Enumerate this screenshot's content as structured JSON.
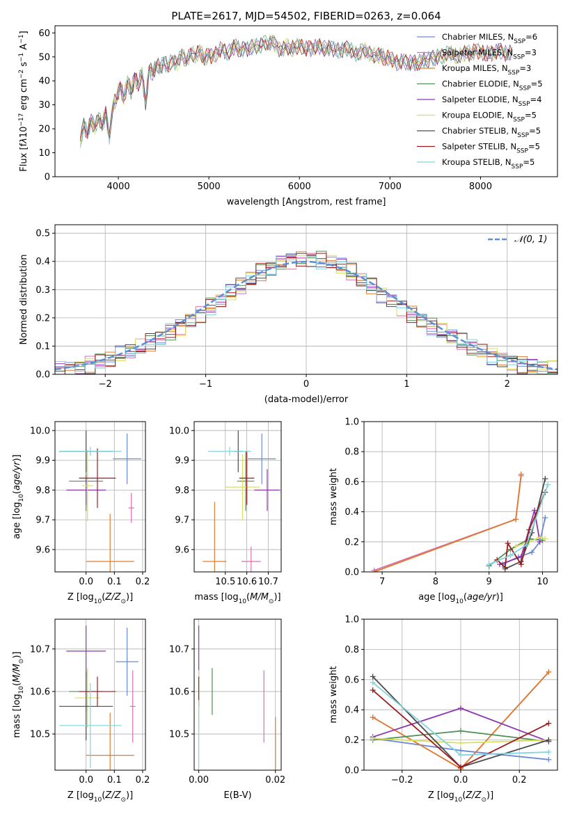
{
  "figure_title": "PLATE=2617, MJD=54502, FIBERID=0263, z=0.064",
  "colors": {
    "Chabrier MILES": "#6a8bd4",
    "Salpeter MILES": "#d86fb8",
    "Kroupa MILES": "#e07b2e",
    "Chabrier ELODIE": "#4f8f53",
    "Salpeter ELODIE": "#8e35b0",
    "Kroupa ELODIE": "#d8e05a",
    "Chabrier STELIB": "#4a4a4a",
    "Salpeter STELIB": "#9e1b1b",
    "Kroupa STELIB": "#7fd3de",
    "normal": "#5b8fd9"
  },
  "chart_data": [
    {
      "id": "spectrum",
      "type": "line",
      "title": "PLATE=2617, MJD=54502, FIBERID=0263, z=0.064",
      "xlabel": "wavelength [Angstrom, rest frame]",
      "ylabel": "Flux [f_λ 10^-17 erg cm^-2 s^-1 A^-1]",
      "xlim": [
        3300,
        8850
      ],
      "ylim": [
        0,
        63
      ],
      "xticks": [
        4000,
        5000,
        6000,
        7000,
        8000
      ],
      "yticks": [
        0,
        10,
        20,
        30,
        40,
        50,
        60
      ],
      "grid": false,
      "legend_position": "top-right",
      "legend": [
        "Chabrier MILES, N_SSP=6",
        "Salpeter MILES, N_SSP=3",
        "Kroupa MILES, N_SSP=3",
        "Chabrier ELODIE, N_SSP=5",
        "Salpeter ELODIE, N_SSP=4",
        "Kroupa ELODIE, N_SSP=5",
        "Chabrier STELIB, N_SSP=5",
        "Salpeter STELIB, N_SSP=5",
        "Kroupa STELIB, N_SSP=5"
      ],
      "x": [
        3580,
        3620,
        3660,
        3700,
        3740,
        3780,
        3820,
        3860,
        3900,
        3940,
        3980,
        4020,
        4060,
        4100,
        4140,
        4180,
        4220,
        4260,
        4300,
        4340,
        4380,
        4420,
        4460,
        4500,
        4550,
        4600,
        4650,
        4700,
        4750,
        4800,
        4850,
        4900,
        4950,
        5000,
        5050,
        5100,
        5150,
        5200,
        5250,
        5300,
        5350,
        5400,
        5450,
        5500,
        5550,
        5600,
        5650,
        5700,
        5750,
        5800,
        5850,
        5900,
        5950,
        6000,
        6050,
        6100,
        6150,
        6200,
        6250,
        6300,
        6350,
        6400,
        6450,
        6500,
        6550,
        6600,
        6650,
        6700,
        6750,
        6800,
        6850,
        6900,
        6950,
        7000,
        7050,
        7100,
        7150,
        7200,
        7250,
        7300,
        7350,
        7400,
        7450,
        7500,
        7550,
        7600,
        7650,
        7700,
        7750,
        7800,
        7850,
        7900,
        7950,
        8000,
        8050,
        8100,
        8150,
        8200,
        8250,
        8300,
        8350
      ],
      "y": [
        14,
        22,
        18,
        24,
        20,
        25,
        21,
        27,
        16,
        30,
        33,
        38,
        32,
        40,
        35,
        42,
        38,
        44,
        30,
        45,
        43,
        47,
        45,
        48,
        46,
        49,
        47,
        51,
        48,
        52,
        50,
        53,
        49,
        51,
        50,
        52,
        54,
        51,
        53,
        55,
        52,
        54,
        53,
        55,
        54,
        56,
        55,
        57,
        54,
        52,
        55,
        53,
        54,
        55,
        53,
        54,
        53,
        55,
        54,
        53,
        54,
        53,
        52,
        54,
        53,
        52,
        51,
        53,
        52,
        51,
        50,
        51,
        49,
        50,
        48,
        47,
        49,
        47,
        48,
        47,
        49,
        48,
        50,
        49,
        51,
        50,
        52,
        51,
        50,
        51,
        52,
        51,
        53,
        52,
        51,
        52,
        51,
        53,
        52,
        51,
        52
      ]
    },
    {
      "id": "residuals",
      "type": "line",
      "xlabel": "(data-model)/error",
      "ylabel": "Normed distribution",
      "xlim": [
        -2.5,
        2.5
      ],
      "ylim": [
        0,
        0.53
      ],
      "xticks": [
        -2,
        -1,
        0,
        1,
        2
      ],
      "yticks": [
        0.0,
        0.1,
        0.2,
        0.3,
        0.4,
        0.5
      ],
      "grid": true,
      "legend_position": "top-right",
      "legend": [
        "𝒩(0, 1)"
      ],
      "bin_edges": [
        -2.5,
        -2.4,
        -2.3,
        -2.2,
        -2.1,
        -2.0,
        -1.9,
        -1.8,
        -1.7,
        -1.6,
        -1.5,
        -1.4,
        -1.3,
        -1.2,
        -1.1,
        -1.0,
        -0.9,
        -0.8,
        -0.7,
        -0.6,
        -0.5,
        -0.4,
        -0.3,
        -0.2,
        -0.1,
        0.0,
        0.1,
        0.2,
        0.3,
        0.4,
        0.5,
        0.6,
        0.7,
        0.8,
        0.9,
        1.0,
        1.1,
        1.2,
        1.3,
        1.4,
        1.5,
        1.6,
        1.7,
        1.8,
        1.9,
        2.0,
        2.1,
        2.2,
        2.3,
        2.4,
        2.5
      ],
      "histogram_center": [
        0.015,
        0.02,
        0.028,
        0.036,
        0.045,
        0.055,
        0.067,
        0.08,
        0.095,
        0.112,
        0.13,
        0.15,
        0.17,
        0.192,
        0.215,
        0.24,
        0.262,
        0.285,
        0.31,
        0.335,
        0.36,
        0.38,
        0.395,
        0.405,
        0.41,
        0.41,
        0.405,
        0.395,
        0.38,
        0.36,
        0.335,
        0.31,
        0.285,
        0.262,
        0.24,
        0.215,
        0.192,
        0.17,
        0.15,
        0.13,
        0.112,
        0.095,
        0.08,
        0.067,
        0.055,
        0.045,
        0.036,
        0.028,
        0.02,
        0.015
      ],
      "normal_curve": {
        "mean": 0,
        "sigma": 1
      }
    },
    {
      "id": "age_vs_Z",
      "type": "scatter",
      "xlabel": "Z [log10(Z/Z⊙)]",
      "ylabel": "age [log10(age/yr)]",
      "xlim": [
        -0.11,
        0.21
      ],
      "ylim": [
        9.525,
        10.03
      ],
      "xticks": [
        0.0,
        0.1,
        0.2
      ],
      "yticks": [
        9.6,
        9.7,
        9.8,
        9.9,
        10.0
      ],
      "grid": true,
      "points": [
        {
          "model": "Chabrier MILES",
          "x": 0.145,
          "xerr": 0.05,
          "y": 9.905,
          "yerr": 0.085
        },
        {
          "model": "Salpeter MILES",
          "x": 0.16,
          "xerr": 0.01,
          "y": 9.74,
          "yerr": 0.05
        },
        {
          "model": "Kroupa MILES",
          "x": 0.085,
          "xerr": 0.085,
          "y": 9.56,
          "yerr": 0.16
        },
        {
          "model": "Chabrier ELODIE",
          "x": 0.0,
          "xerr": 0.06,
          "y": 9.83,
          "yerr": 0.1
        },
        {
          "model": "Salpeter ELODIE",
          "x": 0.0,
          "xerr": 0.07,
          "y": 9.8,
          "yerr": 0.05
        },
        {
          "model": "Kroupa ELODIE",
          "x": 0.005,
          "xerr": 0.02,
          "y": 9.815,
          "yerr": 0.12
        },
        {
          "model": "Chabrier STELIB",
          "x": 0.0,
          "xerr": 0.095,
          "y": 9.93,
          "yerr": 0.07
        },
        {
          "model": "Salpeter STELIB",
          "x": 0.04,
          "xerr": 0.065,
          "y": 9.84,
          "yerr": 0.1
        },
        {
          "model": "Kroupa STELIB",
          "x": 0.015,
          "xerr": 0.11,
          "y": 9.93,
          "yerr": 0.015
        }
      ]
    },
    {
      "id": "age_vs_mass",
      "type": "scatter",
      "xlabel": "mass [log10(M/M⊙)]",
      "ylabel": "",
      "xlim": [
        10.355,
        10.76
      ],
      "ylim": [
        9.525,
        10.03
      ],
      "xticks": [
        10.5,
        10.6,
        10.7
      ],
      "yticks": [
        9.6,
        9.7,
        9.8,
        9.9,
        10.0
      ],
      "grid": true,
      "points": [
        {
          "model": "Chabrier MILES",
          "x": 10.67,
          "xerr": 0.065,
          "y": 9.905,
          "yerr": 0.085
        },
        {
          "model": "Salpeter MILES",
          "x": 10.62,
          "xerr": 0.045,
          "y": 9.56,
          "yerr": 0.05
        },
        {
          "model": "Kroupa MILES",
          "x": 10.45,
          "xerr": 0.055,
          "y": 9.56,
          "yerr": 0.2
        },
        {
          "model": "Chabrier ELODIE",
          "x": 10.595,
          "xerr": 0.04,
          "y": 9.83,
          "yerr": 0.1
        },
        {
          "model": "Salpeter ELODIE",
          "x": 10.695,
          "xerr": 0.06,
          "y": 9.8,
          "yerr": 0.07
        },
        {
          "model": "Kroupa ELODIE",
          "x": 10.58,
          "xerr": 0.08,
          "y": 9.81,
          "yerr": 0.11
        },
        {
          "model": "Chabrier STELIB",
          "x": 10.56,
          "xerr": 0.02,
          "y": 9.93,
          "yerr": 0.07
        },
        {
          "model": "Salpeter STELIB",
          "x": 10.6,
          "xerr": 0.035,
          "y": 9.84,
          "yerr": 0.09
        },
        {
          "model": "Kroupa STELIB",
          "x": 10.52,
          "xerr": 0.1,
          "y": 9.93,
          "yerr": 0.015
        }
      ]
    },
    {
      "id": "massweight_vs_age",
      "type": "line",
      "xlabel": "age [log10(age/yr)]",
      "ylabel": "mass weight",
      "xlim": [
        6.66,
        10.28
      ],
      "ylim": [
        0,
        1.0
      ],
      "xticks": [
        7,
        8,
        9,
        10
      ],
      "yticks": [
        0.0,
        0.2,
        0.4,
        0.6,
        0.8,
        1.0
      ],
      "grid": true,
      "series": [
        {
          "name": "Chabrier MILES",
          "x": [
            9.25,
            9.55,
            9.8,
            9.95,
            10.05
          ],
          "y": [
            0.05,
            0.1,
            0.13,
            0.2,
            0.36
          ]
        },
        {
          "name": "Salpeter MILES",
          "x": [
            6.85,
            9.5,
            9.6
          ],
          "y": [
            0.01,
            0.35,
            0.64
          ]
        },
        {
          "name": "Kroupa MILES",
          "x": [
            6.85,
            9.5,
            9.6
          ],
          "y": [
            0.0,
            0.35,
            0.65
          ]
        },
        {
          "name": "Chabrier ELODIE",
          "x": [
            9.0,
            9.4,
            9.75,
            10.0
          ],
          "y": [
            0.04,
            0.15,
            0.22,
            0.21
          ]
        },
        {
          "name": "Salpeter ELODIE",
          "x": [
            9.2,
            9.6,
            9.85,
            9.95
          ],
          "y": [
            0.05,
            0.1,
            0.41,
            0.2
          ]
        },
        {
          "name": "Kroupa ELODIE",
          "x": [
            9.5,
            9.75,
            9.95,
            10.05
          ],
          "y": [
            0.17,
            0.2,
            0.23,
            0.22
          ]
        },
        {
          "name": "Chabrier STELIB",
          "x": [
            9.3,
            9.6,
            9.8,
            10.05
          ],
          "y": [
            0.02,
            0.07,
            0.26,
            0.62
          ]
        },
        {
          "name": "Salpeter STELIB",
          "x": [
            9.15,
            9.3,
            9.35,
            9.6,
            9.75,
            10.05
          ],
          "y": [
            0.08,
            0.03,
            0.19,
            0.05,
            0.28,
            0.53
          ]
        },
        {
          "name": "Kroupa STELIB",
          "x": [
            9.0,
            9.4,
            9.7,
            10.1
          ],
          "y": [
            0.05,
            0.11,
            0.18,
            0.58
          ]
        }
      ]
    },
    {
      "id": "mass_vs_Z",
      "type": "scatter",
      "xlabel": "Z [log10(Z/Z⊙)]",
      "ylabel": "mass [log10(M/M⊙)]",
      "xlim": [
        -0.11,
        0.21
      ],
      "ylim": [
        10.415,
        10.77
      ],
      "xticks": [
        0.0,
        0.1,
        0.2
      ],
      "yticks": [
        10.5,
        10.6,
        10.7
      ],
      "grid": true,
      "points": [
        {
          "model": "Chabrier MILES",
          "x": 0.145,
          "xerr": 0.04,
          "y": 10.67,
          "yerr": 0.08
        },
        {
          "model": "Salpeter MILES",
          "x": 0.165,
          "xerr": 0.01,
          "y": 10.565,
          "yerr": 0.085
        },
        {
          "model": "Kroupa MILES",
          "x": 0.085,
          "xerr": 0.085,
          "y": 10.45,
          "yerr": 0.1
        },
        {
          "model": "Chabrier ELODIE",
          "x": 0.0,
          "xerr": 0.06,
          "y": 10.6,
          "yerr": 0.05
        },
        {
          "model": "Salpeter ELODIE",
          "x": 0.0,
          "xerr": 0.07,
          "y": 10.695,
          "yerr": 0.06
        },
        {
          "model": "Kroupa ELODIE",
          "x": 0.005,
          "xerr": 0.045,
          "y": 10.585,
          "yerr": 0.07
        },
        {
          "model": "Chabrier STELIB",
          "x": 0.0,
          "xerr": 0.095,
          "y": 10.565,
          "yerr": 0.08
        },
        {
          "model": "Salpeter STELIB",
          "x": 0.04,
          "xerr": 0.065,
          "y": 10.6,
          "yerr": 0.035
        },
        {
          "model": "Kroupa STELIB",
          "x": 0.015,
          "xerr": 0.11,
          "y": 10.52,
          "yerr": 0.1
        }
      ]
    },
    {
      "id": "mass_vs_EBV",
      "type": "scatter",
      "xlabel": "E(B-V)",
      "ylabel": "",
      "xlim": [
        -0.0012,
        0.0215
      ],
      "ylim": [
        10.415,
        10.77
      ],
      "xticks": [
        0.0,
        0.02
      ],
      "yticks": [
        10.5,
        10.6,
        10.7
      ],
      "grid": true,
      "points": [
        {
          "model": "Salpeter MILES",
          "x": 0.017,
          "y": 10.565,
          "yerr": 0.085
        },
        {
          "model": "Kroupa MILES",
          "x": 0.02,
          "y": 10.45,
          "yerr": 0.09
        },
        {
          "model": "Chabrier ELODIE",
          "x": 0.0035,
          "y": 10.6,
          "yerr": 0.055
        },
        {
          "model": "Salpeter ELODIE",
          "x": 0.0,
          "y": 10.695,
          "yerr": 0.06
        },
        {
          "model": "Kroupa ELODIE",
          "x": 0.0,
          "y": 10.58,
          "yerr": 0.07
        },
        {
          "model": "Salpeter STELIB",
          "x": 0.0,
          "y": 10.6,
          "yerr": 0.035
        },
        {
          "model": "Kroupa STELIB",
          "x": 0.0,
          "y": 10.5,
          "yerr": 0.08
        }
      ]
    },
    {
      "id": "massweight_vs_Z",
      "type": "line",
      "xlabel": "Z [log10(Z/Z⊙)]",
      "ylabel": "mass weight",
      "xlim": [
        -0.33,
        0.33
      ],
      "ylim": [
        0,
        1.0
      ],
      "xticks": [
        -0.2,
        0.0,
        0.2
      ],
      "yticks": [
        0.0,
        0.2,
        0.4,
        0.6,
        0.8,
        1.0
      ],
      "grid": true,
      "series": [
        {
          "name": "Chabrier MILES",
          "x": [
            -0.3,
            0.0,
            0.3
          ],
          "y": [
            0.21,
            0.13,
            0.07
          ]
        },
        {
          "name": "Salpeter MILES",
          "x": [
            -0.3,
            0.0,
            0.3
          ],
          "y": [
            0.35,
            0.01,
            0.65
          ]
        },
        {
          "name": "Kroupa MILES",
          "x": [
            -0.3,
            0.0,
            0.3
          ],
          "y": [
            0.35,
            0.01,
            0.65
          ]
        },
        {
          "name": "Chabrier ELODIE",
          "x": [
            -0.3,
            0.0,
            0.3
          ],
          "y": [
            0.2,
            0.26,
            0.19
          ]
        },
        {
          "name": "Salpeter ELODIE",
          "x": [
            -0.3,
            0.0,
            0.3
          ],
          "y": [
            0.22,
            0.41,
            0.19
          ]
        },
        {
          "name": "Kroupa ELODIE",
          "x": [
            -0.3,
            0.0,
            0.3
          ],
          "y": [
            0.21,
            0.18,
            0.2
          ]
        },
        {
          "name": "Chabrier STELIB",
          "x": [
            -0.3,
            0.0,
            0.3
          ],
          "y": [
            0.62,
            0.02,
            0.2
          ]
        },
        {
          "name": "Salpeter STELIB",
          "x": [
            -0.3,
            0.0,
            0.3
          ],
          "y": [
            0.53,
            0.02,
            0.31
          ]
        },
        {
          "name": "Kroupa STELIB",
          "x": [
            -0.3,
            0.0,
            0.3
          ],
          "y": [
            0.58,
            0.1,
            0.12
          ]
        }
      ]
    }
  ]
}
